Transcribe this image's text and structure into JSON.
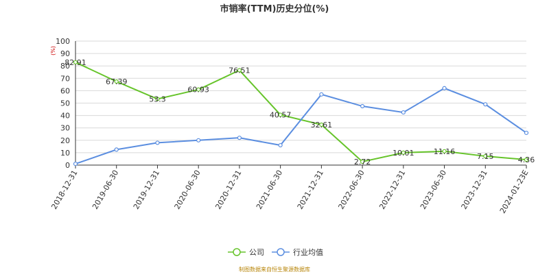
{
  "chart_data": {
    "type": "line",
    "title": "市销率(TTM)历史分位(%)",
    "yunit": "(%)",
    "ylim": [
      0,
      100
    ],
    "yticks": [
      0,
      10,
      20,
      30,
      40,
      50,
      60,
      70,
      80,
      90,
      100
    ],
    "categories": [
      "2018-12-31",
      "2019-06-30",
      "2019-12-31",
      "2020-06-30",
      "2020-12-31",
      "2021-06-30",
      "2021-12-31",
      "2022-06-30",
      "2022-12-31",
      "2023-06-30",
      "2023-12-31",
      "2024-01-23E"
    ],
    "series": [
      {
        "name": "公司",
        "color": "#66c42a",
        "values": [
          82.91,
          67.39,
          53.3,
          60.93,
          76.51,
          40.57,
          32.61,
          2.72,
          10.01,
          11.16,
          7.15,
          4.36
        ],
        "labels": [
          "82.91",
          "67.39",
          "53.3",
          "60.93",
          "76.51",
          "40.57",
          "32.61",
          "2.72",
          "10.01",
          "11.16",
          "7.15",
          "4.36"
        ]
      },
      {
        "name": "行业均值",
        "color": "#5b8ee0",
        "values": [
          1,
          12.5,
          18,
          20,
          22,
          16,
          57,
          47.5,
          42.5,
          62,
          49,
          26
        ]
      }
    ],
    "grid": true,
    "legend": "bottom-center"
  },
  "source_text": "制图数据来自恒生聚源数据库"
}
